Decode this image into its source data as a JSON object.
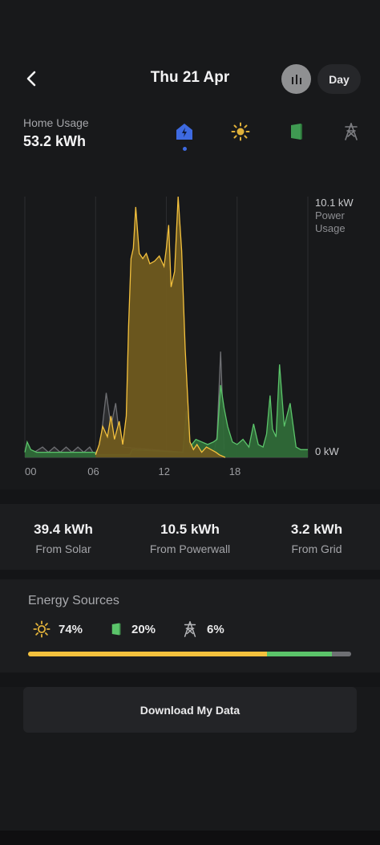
{
  "header": {
    "title": "Thu 21 Apr",
    "period_button": "Day"
  },
  "usage": {
    "label": "Home Usage",
    "value": "53.2 kWh"
  },
  "source_tabs": [
    {
      "icon": "home-icon",
      "active": true
    },
    {
      "icon": "sun-icon",
      "active": false
    },
    {
      "icon": "powerwall-icon",
      "active": false
    },
    {
      "icon": "grid-tower-icon",
      "active": false
    }
  ],
  "colors": {
    "solar": "#f4c13d",
    "powerwall": "#5bc46a",
    "grid": "#6e6f73",
    "accent": "#3e6ae1"
  },
  "chart_data": {
    "type": "area",
    "y_max_label": "10.1 kW",
    "y_title_line1": "Power",
    "y_title_line2": "Usage",
    "y_min_label": "0 kW",
    "x_tick_labels": [
      "00",
      "06",
      "12",
      "18"
    ],
    "ylim": [
      0,
      10.1
    ],
    "xlim": [
      0,
      24
    ],
    "series": [
      {
        "kind": "solar",
        "x": [
          6.0,
          6.3,
          6.6,
          7.0,
          7.3,
          7.6,
          8.0,
          8.3,
          8.6,
          8.8,
          9.0,
          9.2,
          9.4,
          9.7,
          10.0,
          10.3,
          10.6,
          11.0,
          11.4,
          11.8,
          12.0,
          12.2,
          12.4,
          12.7,
          13.0,
          13.3,
          13.6,
          14.0,
          14.3,
          14.6,
          15.0,
          15.4,
          15.8,
          16.2,
          16.5,
          17.0
        ],
        "y": [
          0.1,
          0.5,
          1.2,
          0.8,
          1.6,
          0.7,
          1.4,
          0.5,
          1.6,
          5.1,
          7.7,
          8.1,
          9.7,
          7.9,
          7.7,
          7.9,
          7.5,
          7.6,
          7.8,
          7.4,
          8.1,
          9.0,
          6.6,
          7.2,
          10.1,
          8.0,
          4.2,
          0.6,
          0.3,
          0.5,
          0.2,
          0.4,
          0.3,
          0.2,
          0.1,
          0.0
        ]
      },
      {
        "kind": "powerwall",
        "x": [
          0.0,
          0.2,
          0.5,
          1.0,
          5.9,
          6.1,
          8.9,
          9.1,
          13.4,
          13.7,
          14.0,
          14.5,
          15.0,
          15.5,
          16.0,
          16.3,
          16.6,
          16.9,
          17.2,
          17.6,
          18.0,
          18.5,
          19.0,
          19.4,
          19.8,
          20.2,
          20.5,
          20.8,
          21.0,
          21.3,
          21.6,
          22.0,
          22.5,
          23.0,
          23.4,
          24.0
        ],
        "y": [
          0.2,
          0.6,
          0.3,
          0.2,
          0.2,
          0.1,
          0.1,
          0.3,
          0.2,
          1.8,
          0.4,
          0.7,
          0.6,
          0.5,
          0.6,
          0.7,
          2.8,
          1.9,
          1.2,
          0.6,
          0.5,
          0.7,
          0.4,
          1.3,
          0.5,
          0.4,
          0.9,
          2.4,
          1.1,
          0.8,
          3.6,
          1.2,
          2.1,
          0.4,
          0.3,
          0.3
        ]
      },
      {
        "kind": "grid",
        "x": [
          0.8,
          1.5,
          2.0,
          2.5,
          3.0,
          3.5,
          4.0,
          4.5,
          5.0,
          5.5,
          5.9,
          6.4,
          6.9,
          7.3,
          7.7,
          8.0,
          8.3,
          16.0,
          16.3,
          16.6,
          16.9
        ],
        "y": [
          0.2,
          0.4,
          0.2,
          0.4,
          0.2,
          0.4,
          0.2,
          0.4,
          0.2,
          0.4,
          0.1,
          0.5,
          2.5,
          1.2,
          2.1,
          0.9,
          0.4,
          0.1,
          0.8,
          4.1,
          0.3
        ]
      }
    ]
  },
  "totals": [
    {
      "value": "39.4 kWh",
      "label": "From Solar"
    },
    {
      "value": "10.5 kWh",
      "label": "From Powerwall"
    },
    {
      "value": "3.2 kWh",
      "label": "From Grid"
    }
  ],
  "energy_sources": {
    "title": "Energy Sources",
    "solar_pct": "74%",
    "powerwall_pct": "20%",
    "grid_pct": "6%",
    "solar_fraction": 0.74,
    "powerwall_fraction": 0.2,
    "grid_fraction": 0.06
  },
  "download_label": "Download My Data"
}
